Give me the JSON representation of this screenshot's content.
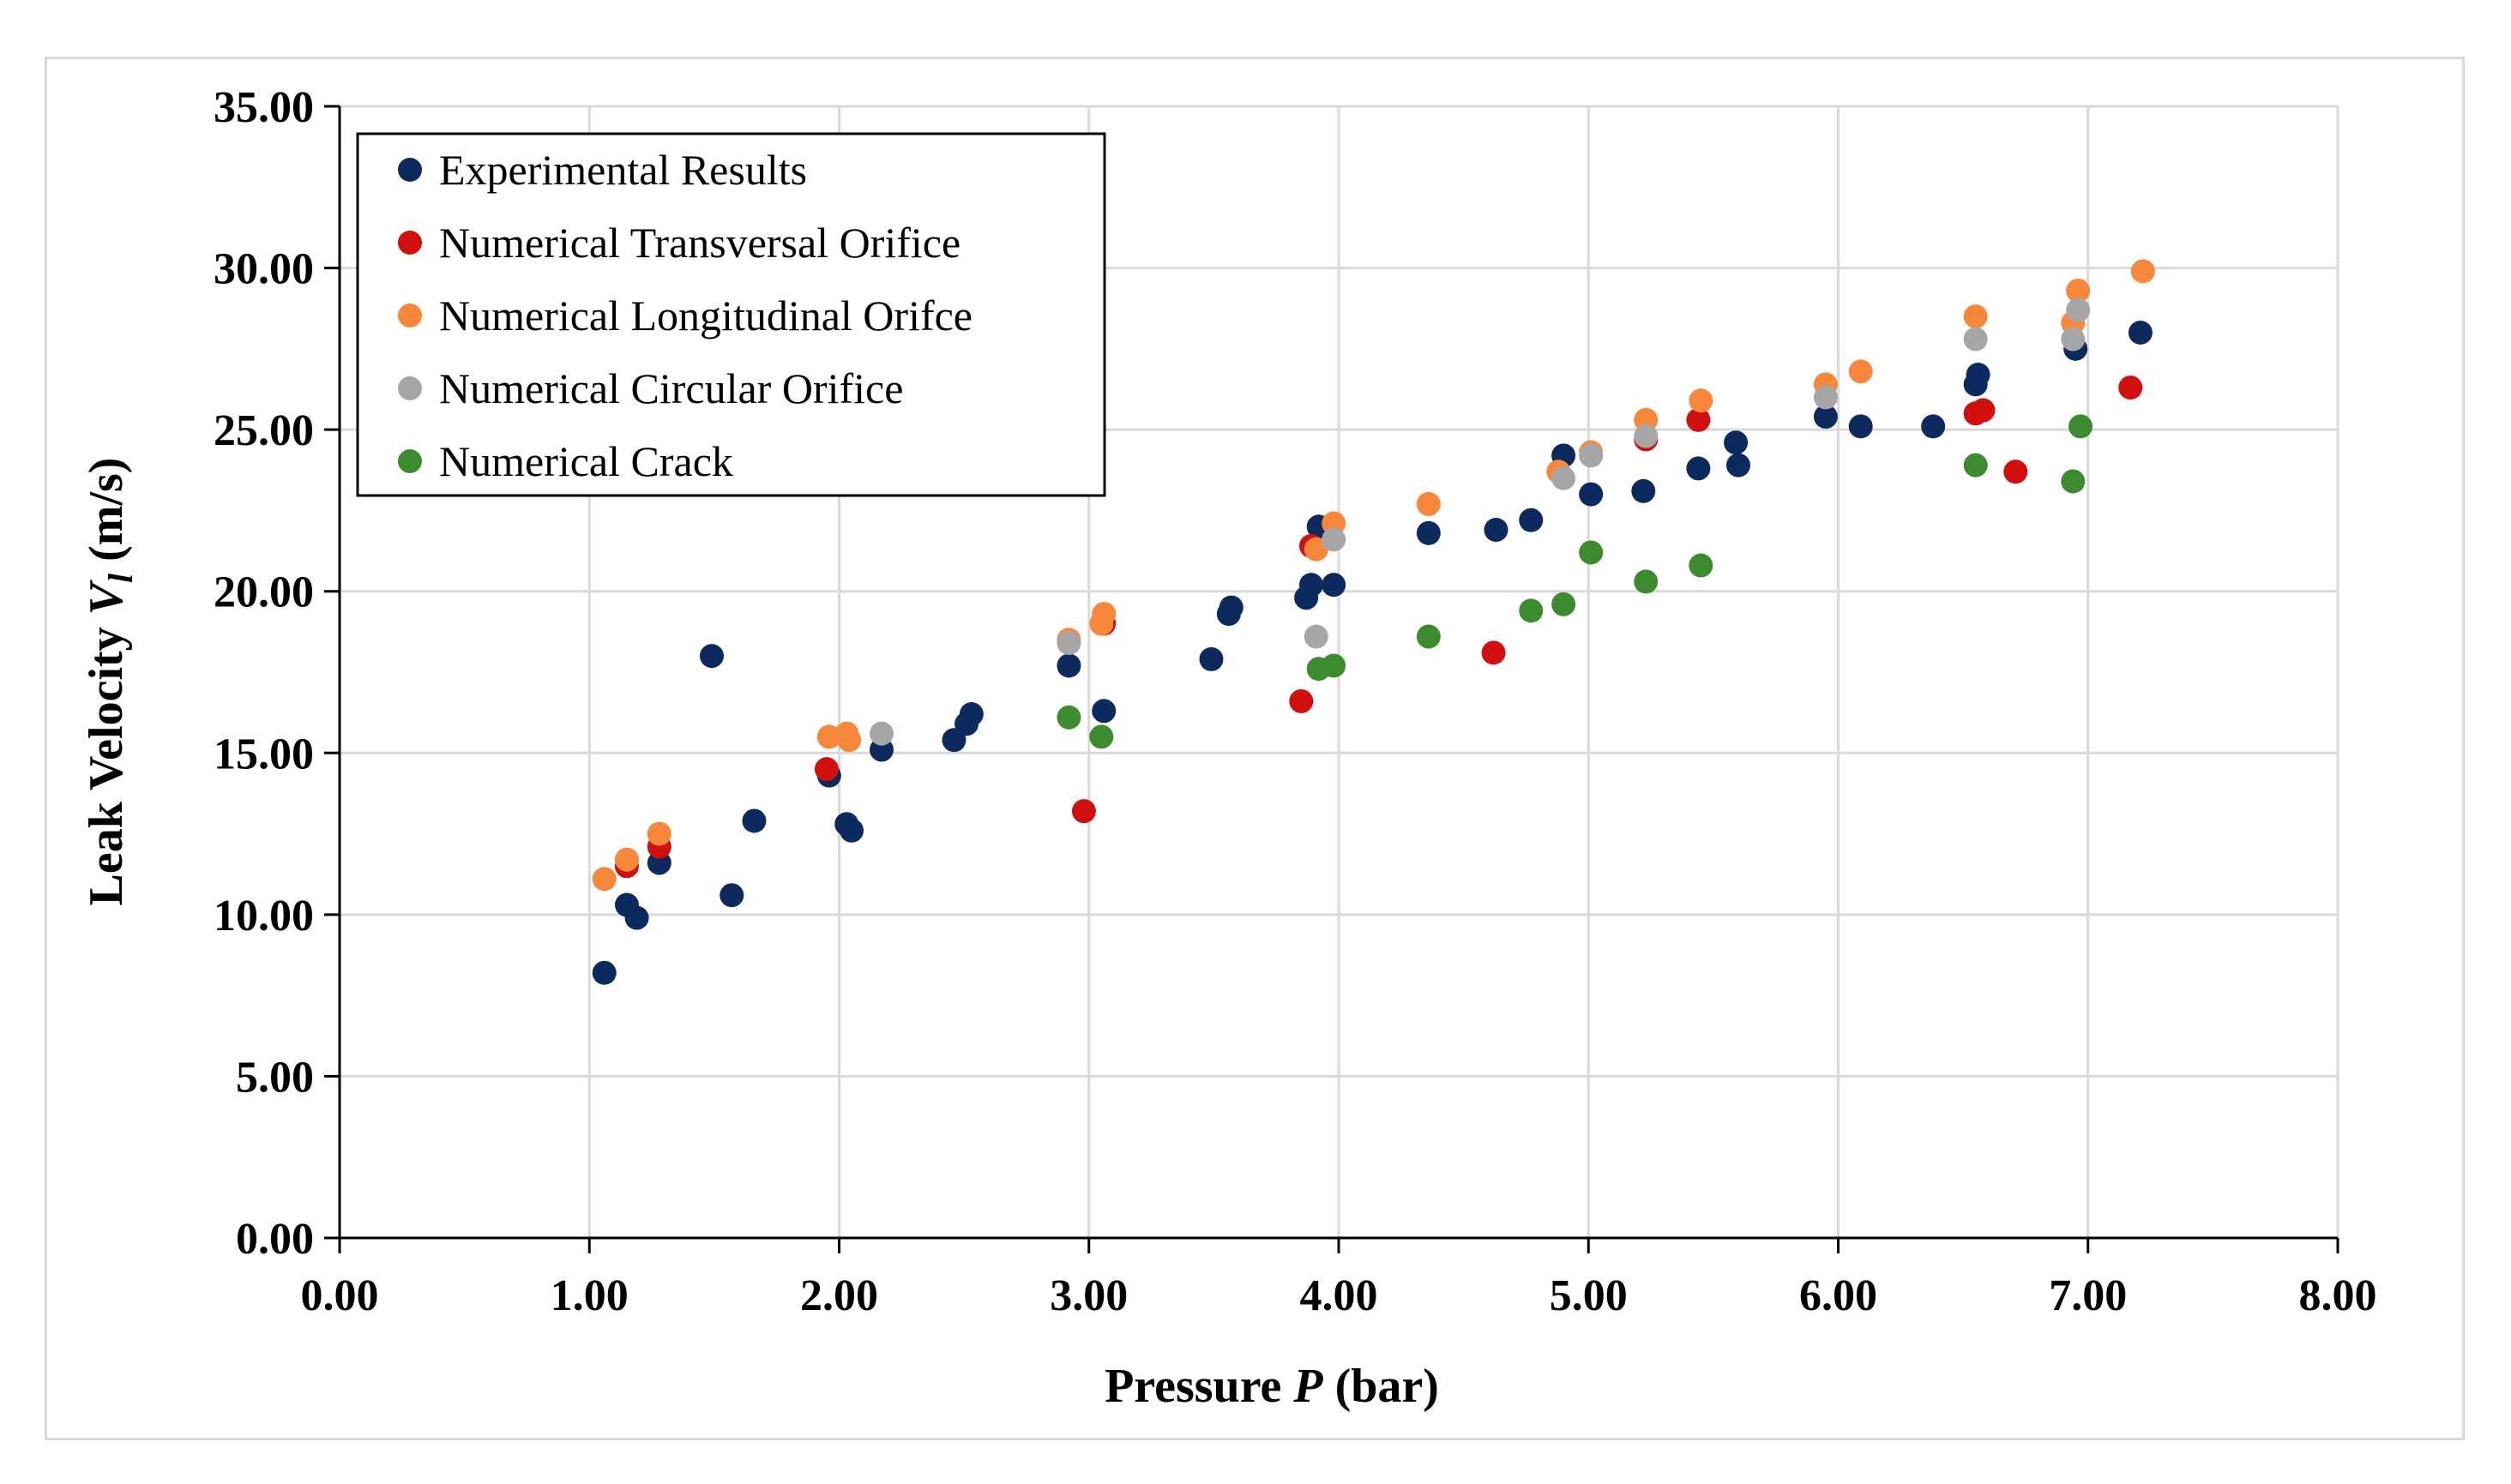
{
  "chart_data": {
    "type": "scatter",
    "title": "",
    "xlabel": "Pressure P (bar)",
    "xlabel_parts": [
      "Pressure ",
      "P",
      " (bar)"
    ],
    "ylabel": "Leak Velocity V_l (m/s)",
    "ylabel_parts": [
      "Leak Velocity ",
      "V",
      "l",
      " (m/s)"
    ],
    "xlim": [
      0,
      8
    ],
    "ylim": [
      0,
      35
    ],
    "x_ticks": [
      0,
      1,
      2,
      3,
      4,
      5,
      6,
      7,
      8
    ],
    "x_tick_labels": [
      "0.00",
      "1.00",
      "2.00",
      "3.00",
      "4.00",
      "5.00",
      "6.00",
      "7.00",
      "8.00"
    ],
    "y_ticks": [
      0,
      5,
      10,
      15,
      20,
      25,
      30,
      35
    ],
    "y_tick_labels": [
      "0.00",
      "5.00",
      "10.00",
      "15.00",
      "20.00",
      "25.00",
      "30.00",
      "35.00"
    ],
    "grid": true,
    "legend_position": "top-left",
    "series": [
      {
        "name": "Experimental Results",
        "color": "#0d2a5e",
        "points": [
          [
            1.06,
            8.2
          ],
          [
            1.15,
            10.3
          ],
          [
            1.19,
            9.9
          ],
          [
            1.28,
            11.6
          ],
          [
            1.49,
            18.0
          ],
          [
            1.57,
            10.6
          ],
          [
            1.66,
            12.9
          ],
          [
            1.96,
            14.3
          ],
          [
            2.03,
            12.8
          ],
          [
            2.05,
            12.6
          ],
          [
            2.17,
            15.1
          ],
          [
            2.46,
            15.4
          ],
          [
            2.51,
            15.9
          ],
          [
            2.53,
            16.2
          ],
          [
            2.92,
            17.7
          ],
          [
            3.06,
            16.3
          ],
          [
            3.49,
            17.9
          ],
          [
            3.56,
            19.3
          ],
          [
            3.57,
            19.5
          ],
          [
            3.87,
            19.8
          ],
          [
            3.89,
            20.2
          ],
          [
            3.92,
            22.0
          ],
          [
            3.98,
            20.2
          ],
          [
            4.36,
            21.8
          ],
          [
            4.63,
            21.9
          ],
          [
            4.77,
            22.2
          ],
          [
            4.9,
            24.2
          ],
          [
            5.01,
            23.0
          ],
          [
            5.22,
            23.1
          ],
          [
            5.44,
            23.8
          ],
          [
            5.59,
            24.6
          ],
          [
            5.6,
            23.9
          ],
          [
            5.95,
            25.4
          ],
          [
            6.09,
            25.1
          ],
          [
            6.38,
            25.1
          ],
          [
            6.55,
            26.4
          ],
          [
            6.56,
            26.7
          ],
          [
            6.95,
            27.5
          ],
          [
            7.21,
            28.0
          ]
        ]
      },
      {
        "name": "Numerical Transversal Orifice",
        "color": "#d10f0f",
        "points": [
          [
            1.15,
            11.5
          ],
          [
            1.28,
            12.1
          ],
          [
            1.95,
            14.5
          ],
          [
            2.98,
            13.2
          ],
          [
            3.06,
            19.0
          ],
          [
            3.85,
            16.6
          ],
          [
            3.89,
            21.4
          ],
          [
            4.62,
            18.1
          ],
          [
            5.23,
            24.7
          ],
          [
            5.44,
            25.3
          ],
          [
            6.55,
            25.5
          ],
          [
            6.58,
            25.6
          ],
          [
            6.71,
            23.7
          ],
          [
            7.17,
            26.3
          ]
        ]
      },
      {
        "name": "Numerical Longitudinal Orifce",
        "color": "#f7873b",
        "points": [
          [
            1.06,
            11.1
          ],
          [
            1.15,
            11.7
          ],
          [
            1.28,
            12.5
          ],
          [
            1.96,
            15.5
          ],
          [
            2.03,
            15.6
          ],
          [
            2.04,
            15.4
          ],
          [
            2.92,
            18.5
          ],
          [
            3.05,
            19.0
          ],
          [
            3.06,
            19.3
          ],
          [
            3.91,
            21.3
          ],
          [
            3.98,
            22.1
          ],
          [
            4.36,
            22.7
          ],
          [
            4.88,
            23.7
          ],
          [
            5.01,
            24.3
          ],
          [
            5.23,
            25.3
          ],
          [
            5.45,
            25.9
          ],
          [
            5.95,
            26.4
          ],
          [
            6.09,
            26.8
          ],
          [
            6.55,
            28.5
          ],
          [
            6.94,
            28.3
          ],
          [
            6.96,
            29.3
          ],
          [
            7.22,
            29.9
          ]
        ]
      },
      {
        "name": "Numerical Circular Orifice",
        "color": "#a6a6a6",
        "points": [
          [
            2.17,
            15.6
          ],
          [
            2.92,
            18.4
          ],
          [
            3.91,
            18.6
          ],
          [
            3.98,
            21.6
          ],
          [
            4.9,
            23.5
          ],
          [
            5.01,
            24.2
          ],
          [
            5.23,
            24.8
          ],
          [
            5.95,
            26.0
          ],
          [
            6.55,
            27.8
          ],
          [
            6.94,
            27.8
          ],
          [
            6.96,
            28.7
          ]
        ]
      },
      {
        "name": "Numerical Crack",
        "color": "#3d8b2f",
        "points": [
          [
            2.92,
            16.1
          ],
          [
            3.05,
            15.5
          ],
          [
            3.92,
            17.6
          ],
          [
            3.98,
            17.7
          ],
          [
            4.36,
            18.6
          ],
          [
            4.77,
            19.4
          ],
          [
            4.9,
            19.6
          ],
          [
            5.01,
            21.2
          ],
          [
            5.23,
            20.3
          ],
          [
            5.45,
            20.8
          ],
          [
            6.55,
            23.9
          ],
          [
            6.94,
            23.4
          ],
          [
            6.97,
            25.1
          ]
        ]
      }
    ]
  }
}
